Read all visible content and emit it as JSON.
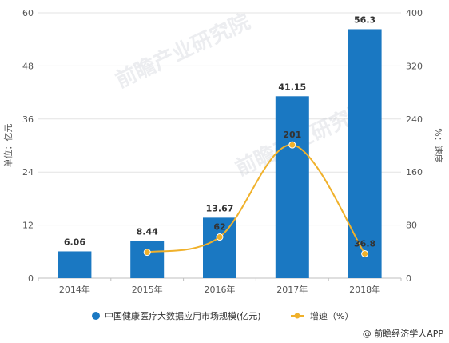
{
  "chart_data": {
    "type": "bar",
    "categories": [
      "2014年",
      "2015年",
      "2016年",
      "2017年",
      "2018年"
    ],
    "series": [
      {
        "name": "中国健康医疗大数据应用市场规模(亿元)",
        "type": "bar",
        "axis": "left",
        "values": [
          6.06,
          8.44,
          13.67,
          41.15,
          56.3
        ],
        "labels": [
          "6.06",
          "8.44",
          "13.67",
          "41.15",
          "56.3"
        ],
        "color": "#1a78c2"
      },
      {
        "name": "增速（%）",
        "type": "line",
        "axis": "right",
        "values": [
          null,
          39,
          62,
          201,
          36.8
        ],
        "labels": [
          "",
          "",
          "62",
          "201",
          "36.8"
        ],
        "color": "#f0b12b"
      }
    ],
    "ylabel": "单位：亿元",
    "ylim": [
      0,
      60
    ],
    "yticks": [
      0,
      12,
      24,
      36,
      48,
      60
    ],
    "y2label": "%：速度",
    "y2lim": [
      0,
      400
    ],
    "y2ticks": [
      0,
      80,
      160,
      240,
      320,
      400
    ],
    "grid": true,
    "legend": "bottom-center"
  },
  "watermark": "前瞻产业研究院",
  "footer": "@ 前瞻经济学人APP"
}
